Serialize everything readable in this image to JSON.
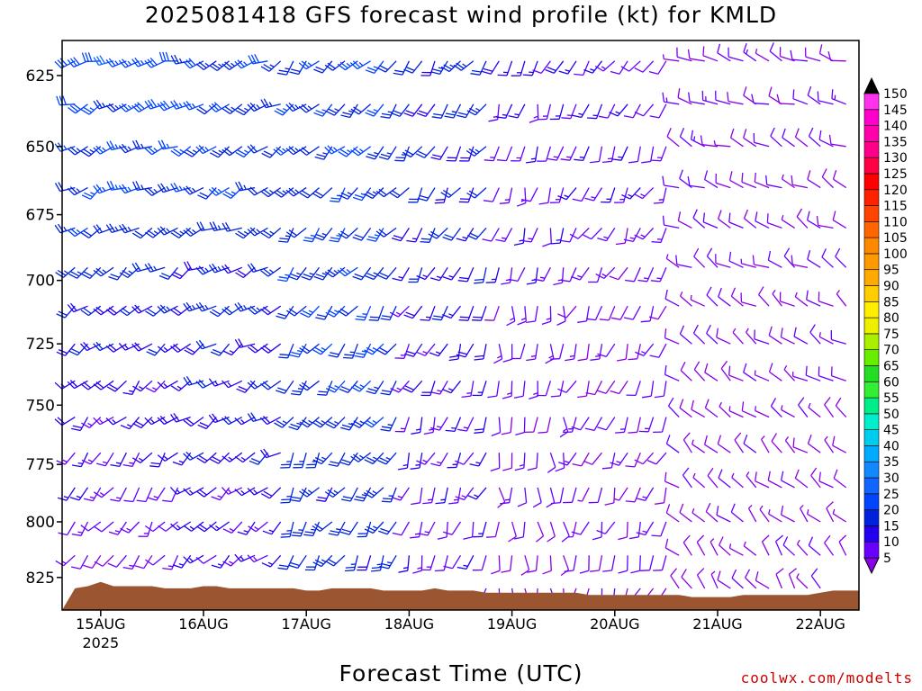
{
  "title": "2025081418 GFS forecast wind profile (kt) for KMLD",
  "x_axis_label": "Forecast Time (UTC)",
  "credit": "coolwx.com/modelts",
  "colors": {
    "terrain": "#9b5530",
    "frame": "#000000",
    "barb_default": "#8a00e6"
  },
  "chart_data": {
    "type": "wind-barb profile",
    "title": "2025081418 GFS forecast wind profile (kt) for KMLD",
    "xlabel": "Forecast Time (UTC)",
    "ylabel": "",
    "y_scale": "log pressure",
    "ylim": [
      840,
      613
    ],
    "y_ticks": [
      625,
      650,
      675,
      700,
      725,
      750,
      775,
      800,
      825
    ],
    "x_range_hours_from_start": [
      -3,
      183
    ],
    "x_ticks": [
      {
        "label": "15AUG",
        "sub": "2025",
        "hour": 6
      },
      {
        "label": "16AUG",
        "sub": "",
        "hour": 30
      },
      {
        "label": "17AUG",
        "sub": "",
        "hour": 54
      },
      {
        "label": "18AUG",
        "sub": "",
        "hour": 78
      },
      {
        "label": "19AUG",
        "sub": "",
        "hour": 102
      },
      {
        "label": "20AUG",
        "sub": "",
        "hour": 126
      },
      {
        "label": "21AUG",
        "sub": "",
        "hour": 150
      },
      {
        "label": "22AUG",
        "sub": "",
        "hour": 174
      }
    ],
    "pressure_levels": [
      620,
      635,
      650,
      665,
      680,
      695,
      710,
      725,
      740,
      755,
      770,
      785,
      800,
      815,
      830
    ],
    "time_step_hours": 3,
    "time_count": 61,
    "surface_pressure": [
      830,
      829,
      827,
      829,
      829,
      829,
      829,
      830,
      830,
      830,
      829,
      829,
      830,
      830,
      830,
      830,
      830,
      830,
      831,
      831,
      830,
      830,
      830,
      830,
      831,
      831,
      831,
      831,
      830,
      831,
      831,
      831,
      832,
      832,
      832,
      832,
      832,
      832,
      832,
      832,
      833,
      833,
      833,
      833,
      833,
      833,
      833,
      833,
      834,
      834,
      834,
      834,
      833,
      833,
      833,
      833,
      833,
      833,
      832,
      831,
      831
    ],
    "colorbar": {
      "values": [
        5,
        10,
        15,
        20,
        25,
        30,
        35,
        40,
        45,
        50,
        55,
        60,
        65,
        70,
        75,
        80,
        85,
        90,
        95,
        100,
        105,
        110,
        115,
        120,
        125,
        130,
        135,
        140,
        145,
        150
      ],
      "colors": [
        "#8a00e6",
        "#6600ff",
        "#2200ee",
        "#0022dd",
        "#0044ff",
        "#1166ff",
        "#1188ff",
        "#00aaff",
        "#00ccee",
        "#00eecc",
        "#00ee88",
        "#33ee33",
        "#22dd22",
        "#66ee00",
        "#aaee00",
        "#eeee00",
        "#ffee00",
        "#ffcc00",
        "#ffaa00",
        "#ff9900",
        "#ff8800",
        "#ff6600",
        "#ff4400",
        "#ff2200",
        "#ff0000",
        "#ff0044",
        "#ff0088",
        "#ff00aa",
        "#ff00cc",
        "#ff33ee"
      ],
      "labels": [
        "5",
        "10",
        "15",
        "20",
        "25",
        "30",
        "35",
        "40",
        "45",
        "50",
        "55",
        "60",
        "65",
        "70",
        "75",
        "80",
        "85",
        "90",
        "95",
        "100",
        "105",
        "110",
        "115",
        "120",
        "125",
        "130",
        "135",
        "140",
        "145",
        "150"
      ]
    },
    "wind_field_model": {
      "segments": [
        {
          "until_hour": 24,
          "upper_speed": 28,
          "lower_speed": 10,
          "upper_dir": 250,
          "lower_dir": 210
        },
        {
          "until_hour": 48,
          "upper_speed": 26,
          "lower_speed": 14,
          "upper_dir": 245,
          "lower_dir": 230
        },
        {
          "until_hour": 75,
          "upper_speed": 24,
          "lower_speed": 22,
          "upper_dir": 225,
          "lower_dir": 210
        },
        {
          "until_hour": 96,
          "upper_speed": 22,
          "lower_speed": 12,
          "upper_dir": 215,
          "lower_dir": 200
        },
        {
          "until_hour": 114,
          "upper_speed": 15,
          "lower_speed": 9,
          "upper_dir": 200,
          "lower_dir": 170
        },
        {
          "until_hour": 138,
          "upper_speed": 14,
          "lower_speed": 9,
          "upper_dir": 210,
          "lower_dir": 200
        },
        {
          "until_hour": 183,
          "upper_speed": 10,
          "lower_speed": 8,
          "upper_dir": 290,
          "lower_dir": 320
        }
      ]
    }
  }
}
